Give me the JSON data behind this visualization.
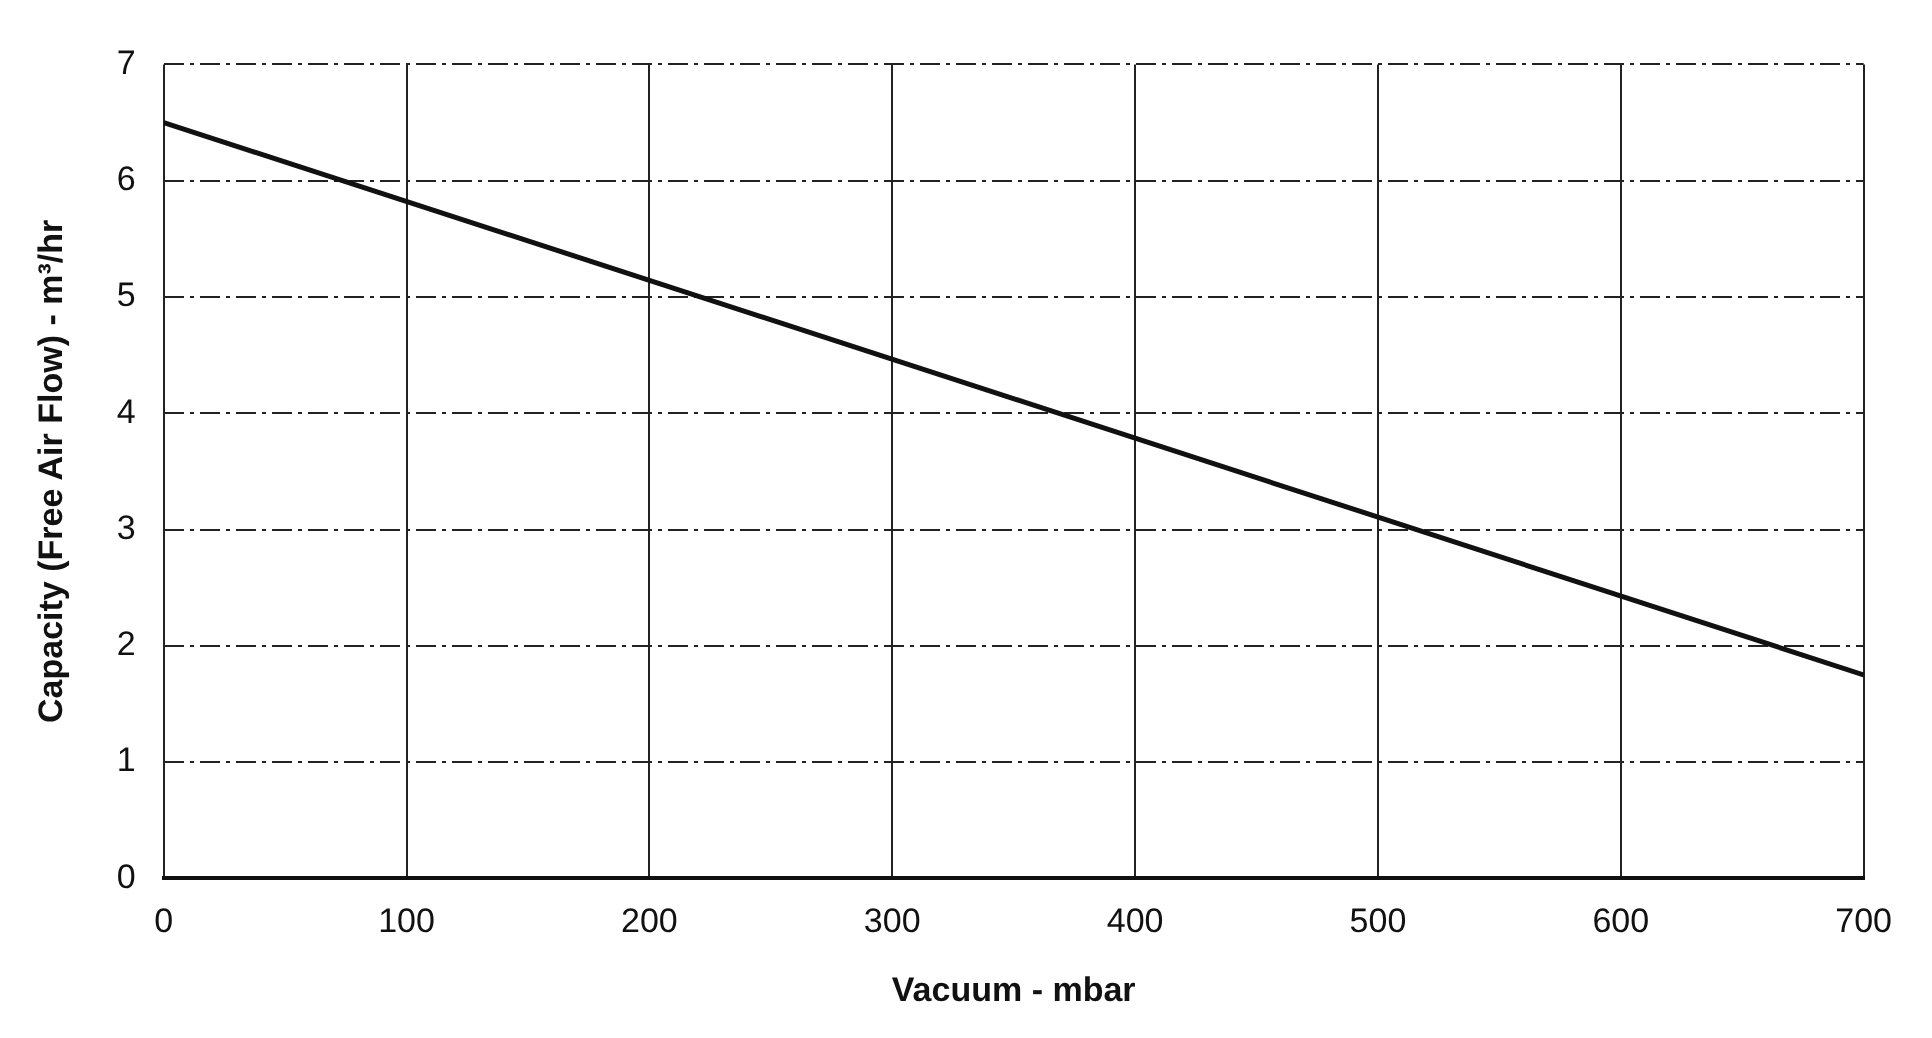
{
  "chart_data": {
    "type": "line",
    "xlabel": "Vacuum - mbar",
    "ylabel": "Capacity (Free Air Flow) - m³/hr",
    "x": [
      0,
      700
    ],
    "series": [
      {
        "color": "#111111",
        "values": [
          6.5,
          1.75
        ]
      }
    ],
    "xlim": [
      0,
      700
    ],
    "xticks": [
      0,
      100,
      200,
      300,
      400,
      500,
      600,
      700
    ],
    "ylim": [
      0,
      7
    ],
    "yticks": [
      0,
      1,
      2,
      3,
      4,
      5,
      6,
      7
    ],
    "grid": true,
    "legend": false,
    "marker": "none",
    "line_style": "solid"
  }
}
